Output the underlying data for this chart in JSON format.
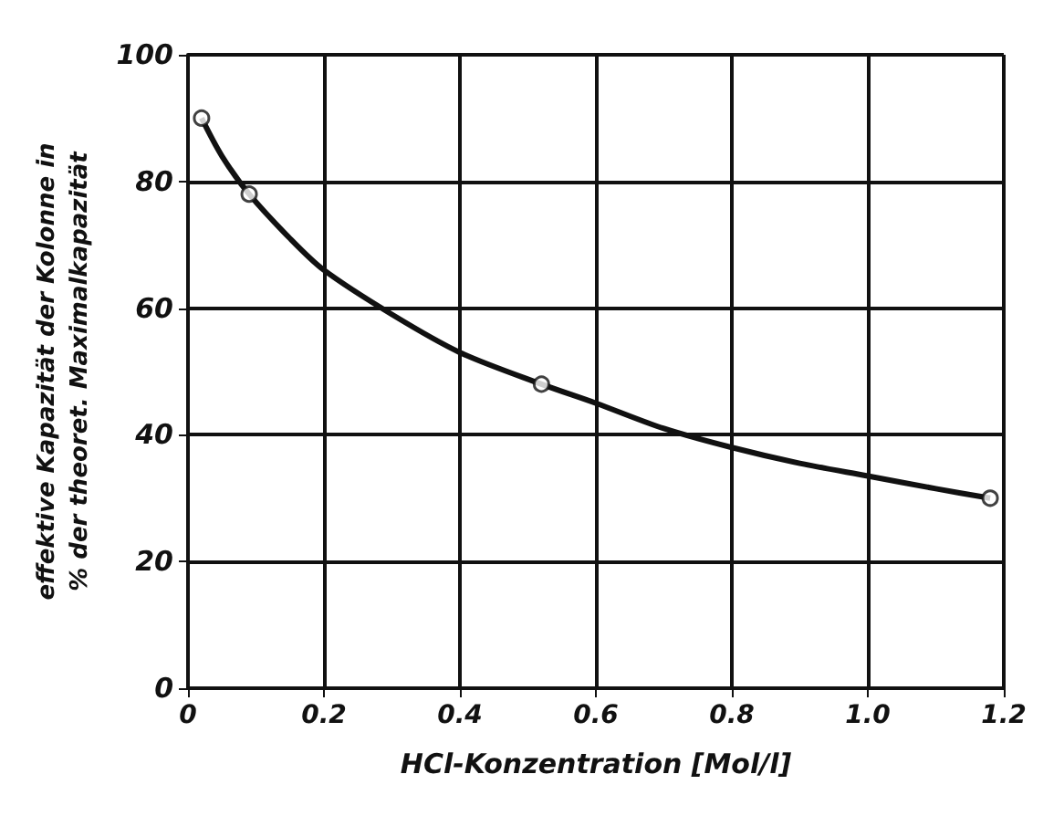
{
  "chart_data": {
    "type": "line",
    "xlabel": "HCl-Konzentration [Mol/l]",
    "ylabel": "effektive Kapazität der Kolonne in\n% der theoret. Maximalkapazität",
    "xlim": [
      0,
      1.2
    ],
    "ylim": [
      0,
      100
    ],
    "xticks": [
      {
        "value": 0,
        "label": "0"
      },
      {
        "value": 0.2,
        "label": "0.2"
      },
      {
        "value": 0.4,
        "label": "0.4"
      },
      {
        "value": 0.6,
        "label": "0.6"
      },
      {
        "value": 0.8,
        "label": "0.8"
      },
      {
        "value": 1.0,
        "label": "1.0"
      },
      {
        "value": 1.2,
        "label": "1.2"
      }
    ],
    "yticks": [
      0,
      20,
      40,
      60,
      80,
      100
    ],
    "grid": true,
    "series": [
      {
        "type": "scatter",
        "color": "#111111",
        "marker": "circle",
        "x": [
          0.02,
          0.09,
          0.52,
          1.18
        ],
        "values": [
          90,
          78,
          48,
          30
        ]
      },
      {
        "color": "#111111",
        "marker": "none",
        "line_style": "solid",
        "x": [
          0.02,
          0.05,
          0.09,
          0.15,
          0.2,
          0.3,
          0.4,
          0.52,
          0.6,
          0.7,
          0.8,
          0.9,
          1.0,
          1.1,
          1.18
        ],
        "values": [
          90,
          84,
          78,
          71,
          66,
          59,
          53,
          48,
          45,
          41,
          38,
          35.5,
          33.5,
          31.5,
          30
        ]
      }
    ]
  }
}
